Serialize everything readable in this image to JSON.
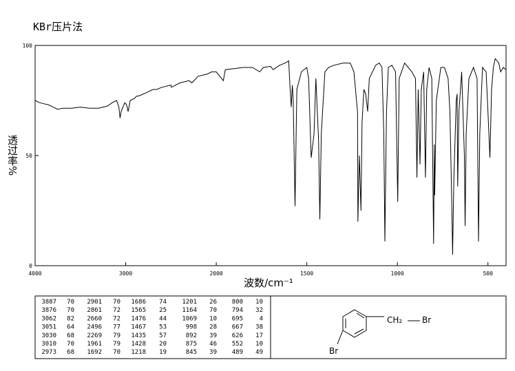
{
  "chart_data": {
    "type": "line",
    "title": "KBr压片法",
    "xlabel": "波数/cm⁻¹",
    "ylabel": "透过率%",
    "xlim": [
      4000,
      400
    ],
    "x_scale_change_at": 2000,
    "ylim": [
      0,
      100
    ],
    "xticks": [
      4000,
      3000,
      2000,
      1500,
      1000,
      500
    ],
    "yticks": [
      0,
      50,
      100
    ],
    "grid": false,
    "x": [
      4000,
      3950,
      3900,
      3850,
      3800,
      3750,
      3700,
      3600,
      3500,
      3400,
      3300,
      3200,
      3150,
      3100,
      3075,
      3062,
      3050,
      3030,
      3010,
      2990,
      2973,
      2950,
      2901,
      2880,
      2861,
      2800,
      2700,
      2660,
      2600,
      2500,
      2496,
      2400,
      2300,
      2269,
      2200,
      2100,
      2050,
      2000,
      1961,
      1950,
      1900,
      1850,
      1800,
      1760,
      1740,
      1700,
      1686,
      1650,
      1620,
      1600,
      1592,
      1586,
      1580,
      1575,
      1565,
      1555,
      1530,
      1500,
      1490,
      1476,
      1467,
      1460,
      1450,
      1442,
      1435,
      1428,
      1420,
      1400,
      1380,
      1350,
      1300,
      1260,
      1240,
      1220,
      1218,
      1210,
      1201,
      1195,
      1185,
      1175,
      1164,
      1155,
      1120,
      1100,
      1085,
      1075,
      1069,
      1060,
      1050,
      1030,
      1010,
      998,
      990,
      960,
      940,
      920,
      900,
      892,
      885,
      875,
      868,
      855,
      845,
      838,
      825,
      810,
      800,
      796,
      794,
      785,
      760,
      740,
      720,
      710,
      700,
      695,
      688,
      675,
      670,
      667,
      660,
      645,
      630,
      626,
      620,
      605,
      580,
      560,
      552,
      545,
      530,
      510,
      500,
      489,
      480,
      470,
      460,
      440,
      430,
      415,
      400
    ],
    "series": [
      {
        "name": "spectrum",
        "color": "#000000",
        "values": [
          75,
          74,
          73.5,
          73,
          72,
          71,
          71.5,
          71.5,
          72,
          71.5,
          71.5,
          72.5,
          74,
          75,
          72,
          67,
          70,
          72,
          74,
          73,
          70,
          75,
          76,
          77,
          77,
          78,
          80,
          80,
          81,
          82,
          81,
          83,
          84,
          83,
          86,
          87,
          88,
          88,
          84,
          89,
          89.5,
          90,
          90,
          88,
          90,
          90.5,
          89,
          91,
          92,
          93,
          80,
          72,
          82,
          75,
          27,
          80,
          88,
          90,
          85,
          49,
          55,
          60,
          85,
          70,
          57,
          21,
          60,
          88,
          90,
          91,
          92,
          92,
          88,
          70,
          20,
          50,
          25,
          65,
          80,
          78,
          70,
          85,
          91,
          92,
          90,
          60,
          11,
          70,
          90,
          91,
          88,
          29,
          85,
          92,
          90,
          88,
          85,
          40,
          80,
          46,
          80,
          88,
          40,
          80,
          90,
          85,
          10,
          55,
          32,
          75,
          90,
          90,
          85,
          70,
          30,
          5,
          40,
          75,
          78,
          36,
          70,
          88,
          50,
          18,
          60,
          85,
          90,
          85,
          11,
          60,
          90,
          88,
          70,
          49,
          80,
          90,
          94,
          92,
          88,
          90,
          89
        ]
      }
    ]
  },
  "peak_table": [
    [
      [
        "3887",
        "70"
      ],
      [
        "3876",
        "70"
      ],
      [
        "3062",
        "82"
      ],
      [
        "3051",
        "64"
      ],
      [
        "3030",
        "68"
      ],
      [
        "3010",
        "70"
      ],
      [
        "2973",
        "68"
      ]
    ],
    [
      [
        "2901",
        "70"
      ],
      [
        "2861",
        "72"
      ],
      [
        "2660",
        "72"
      ],
      [
        "2496",
        "77"
      ],
      [
        "2269",
        "79"
      ],
      [
        "1961",
        "79"
      ],
      [
        "1692",
        "70"
      ]
    ],
    [
      [
        "1686",
        "74"
      ],
      [
        "1565",
        "25"
      ],
      [
        "1476",
        "44"
      ],
      [
        "1467",
        "53"
      ],
      [
        "1435",
        "57"
      ],
      [
        "1428",
        "20"
      ],
      [
        "1218",
        "19"
      ]
    ],
    [
      [
        "1201",
        "26"
      ],
      [
        "1164",
        "70"
      ],
      [
        "1069",
        "10"
      ],
      [
        "998",
        "28"
      ],
      [
        "892",
        "39"
      ],
      [
        "875",
        "46"
      ],
      [
        "845",
        "39"
      ]
    ],
    [
      [
        "800",
        "10"
      ],
      [
        "794",
        "32"
      ],
      [
        "695",
        "4"
      ],
      [
        "667",
        "38"
      ],
      [
        "626",
        "17"
      ],
      [
        "552",
        "10"
      ],
      [
        "489",
        "49"
      ]
    ]
  ],
  "structure": {
    "labels": [
      "CH₂",
      "Br",
      "Br"
    ]
  }
}
